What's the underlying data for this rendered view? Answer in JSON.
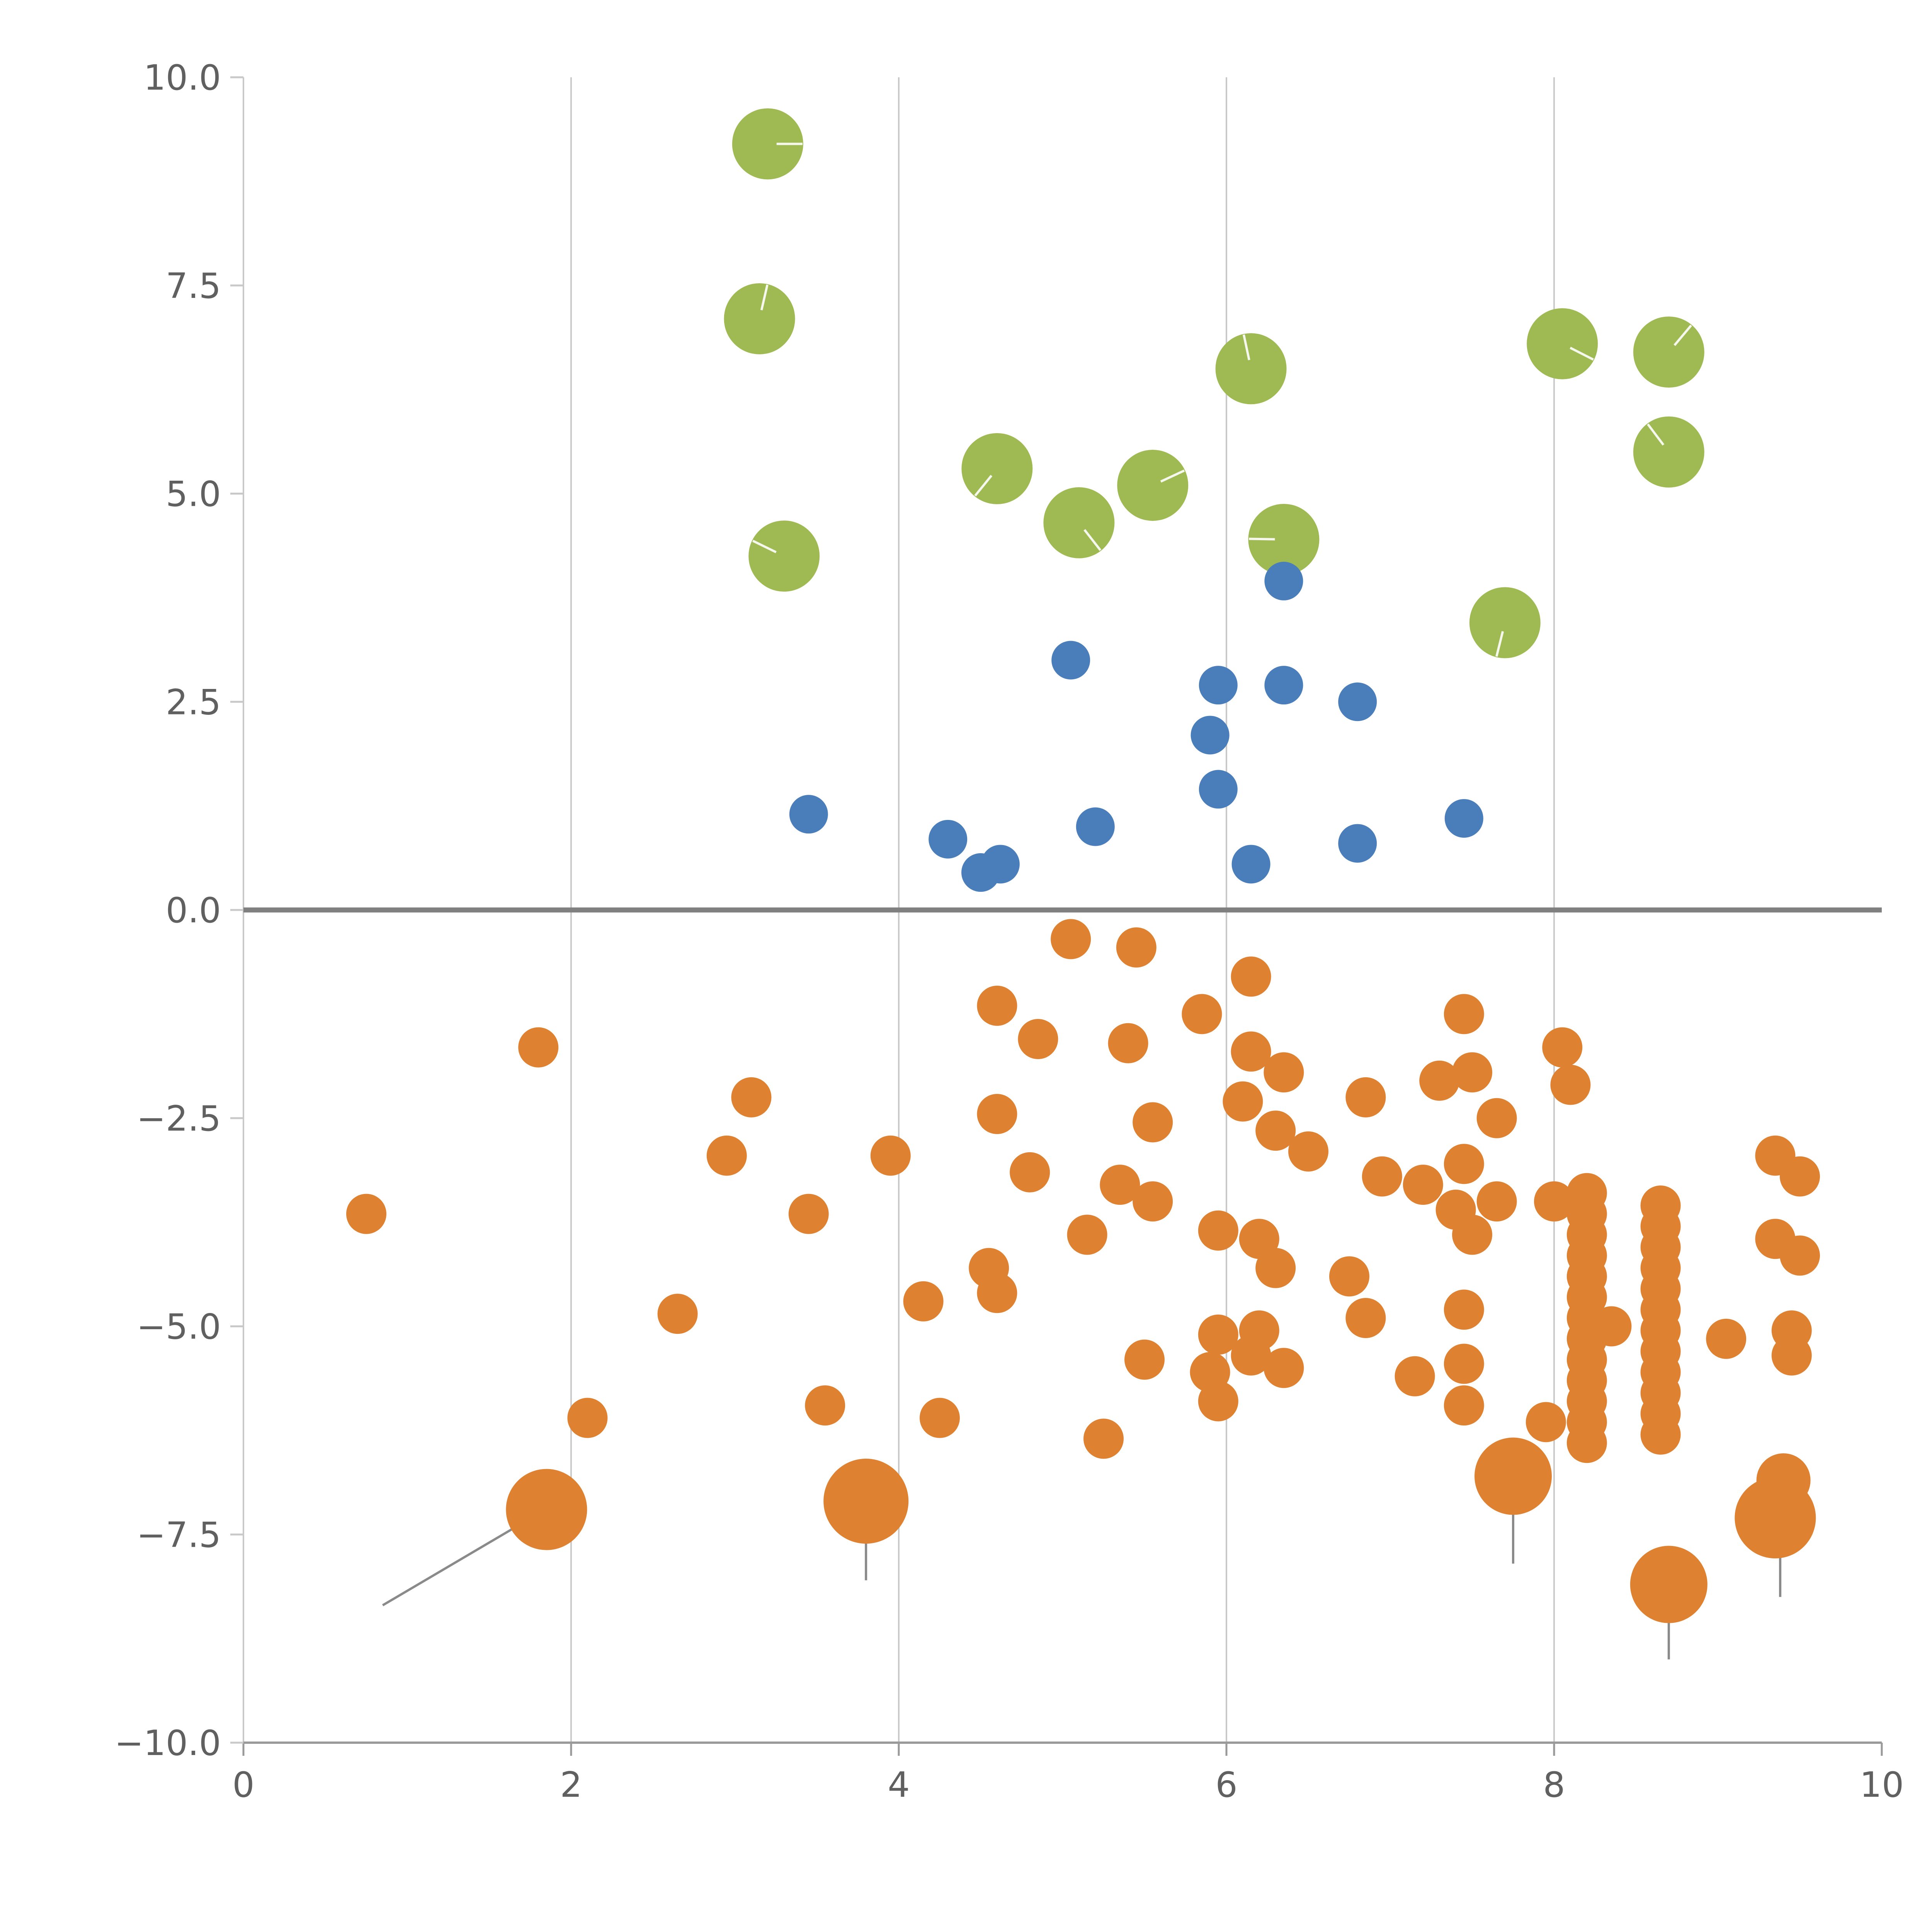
{
  "page": {
    "background": "#ffffff"
  },
  "chart_data": {
    "type": "scatter",
    "title": "",
    "xlabel": "",
    "ylabel": "",
    "xlim": [
      0,
      10
    ],
    "ylim": [
      -10,
      10
    ],
    "legend": "none",
    "grid": {
      "x_values": [
        2,
        4,
        6,
        8
      ],
      "color": "#c9c9c9"
    },
    "zero_line": {
      "y": 0,
      "color": "#808080"
    },
    "axis": {
      "tick_color": "#606060",
      "left_spine_color": "#c9c9c9",
      "bottom_spine_color": "#9a9a9a"
    },
    "x_ticks": {
      "values": [
        0,
        2,
        4,
        6,
        8,
        10
      ],
      "labels": [
        "0",
        "2",
        "4",
        "6",
        "8",
        "10"
      ]
    },
    "y_ticks": {
      "values": [
        10,
        7.5,
        5,
        2.5,
        0,
        -2.5,
        -5,
        -7.5,
        -10
      ],
      "labels": [
        "10.0",
        "7.5",
        "5.0",
        "2.5",
        "0.0",
        "−2.5",
        "−5.0",
        "−7.5",
        "−10.0"
      ]
    },
    "series": [
      {
        "name": "green-cluster",
        "color": "#9fba53",
        "marker_radius_px": 92,
        "points": [
          [
            3.2,
            9.2
          ],
          [
            3.15,
            7.1
          ],
          [
            3.3,
            4.25
          ],
          [
            4.6,
            5.3
          ],
          [
            5.1,
            4.65
          ],
          [
            5.55,
            5.1
          ],
          [
            6.15,
            6.5
          ],
          [
            6.35,
            4.45
          ],
          [
            7.7,
            3.45
          ],
          [
            8.05,
            6.8
          ],
          [
            8.7,
            6.7
          ],
          [
            8.7,
            5.5
          ]
        ]
      },
      {
        "name": "blue-cluster",
        "color": "#4a7ebb",
        "marker_radius_px": 50,
        "points": [
          [
            3.45,
            1.15
          ],
          [
            4.3,
            0.85
          ],
          [
            4.5,
            0.45
          ],
          [
            4.62,
            0.55
          ],
          [
            5.05,
            3.0
          ],
          [
            5.2,
            1.0
          ],
          [
            5.9,
            2.1
          ],
          [
            5.95,
            1.45
          ],
          [
            5.95,
            2.7
          ],
          [
            6.15,
            0.55
          ],
          [
            6.35,
            3.95
          ],
          [
            6.35,
            2.7
          ],
          [
            6.8,
            2.5
          ],
          [
            6.8,
            0.8
          ],
          [
            7.45,
            1.1
          ]
        ]
      },
      {
        "name": "orange-cluster",
        "color": "#de8232",
        "marker_radius_px": 52,
        "points": [
          [
            5.05,
            -0.35
          ],
          [
            5.45,
            -0.45
          ],
          [
            6.15,
            -0.8
          ],
          [
            4.6,
            -1.15
          ],
          [
            5.85,
            -1.25
          ],
          [
            7.45,
            -1.25
          ],
          [
            1.8,
            -1.65
          ],
          [
            4.85,
            -1.55
          ],
          [
            5.4,
            -1.6
          ],
          [
            6.15,
            -1.7
          ],
          [
            8.05,
            -1.65
          ],
          [
            6.35,
            -1.95
          ],
          [
            7.3,
            -2.05
          ],
          [
            7.5,
            -1.95
          ],
          [
            8.1,
            -2.1
          ],
          [
            3.1,
            -2.25
          ],
          [
            6.1,
            -2.3
          ],
          [
            6.85,
            -2.25
          ],
          [
            4.6,
            -2.45
          ],
          [
            5.55,
            -2.55
          ],
          [
            6.3,
            -2.65
          ],
          [
            7.65,
            -2.5
          ],
          [
            2.95,
            -2.95
          ],
          [
            3.95,
            -2.95
          ],
          [
            6.5,
            -2.9
          ],
          [
            7.45,
            -3.05
          ],
          [
            9.35,
            -2.95
          ],
          [
            9.5,
            -3.2
          ],
          [
            4.8,
            -3.15
          ],
          [
            5.35,
            -3.3
          ],
          [
            6.95,
            -3.2
          ],
          [
            7.2,
            -3.3
          ],
          [
            5.55,
            -3.5
          ],
          [
            0.75,
            -3.65
          ],
          [
            3.45,
            -3.65
          ],
          [
            7.4,
            -3.6
          ],
          [
            7.65,
            -3.5
          ],
          [
            8.0,
            -3.5
          ],
          [
            5.15,
            -3.9
          ],
          [
            5.95,
            -3.85
          ],
          [
            6.2,
            -3.95
          ],
          [
            7.5,
            -3.9
          ],
          [
            9.35,
            -3.95
          ],
          [
            9.5,
            -4.15
          ],
          [
            4.55,
            -4.3
          ],
          [
            6.3,
            -4.3
          ],
          [
            6.75,
            -4.4
          ],
          [
            4.15,
            -4.7
          ],
          [
            4.6,
            -4.6
          ],
          [
            2.65,
            -4.85
          ],
          [
            6.85,
            -4.9
          ],
          [
            7.45,
            -4.8
          ],
          [
            8.35,
            -5.0
          ],
          [
            5.95,
            -5.1
          ],
          [
            6.2,
            -5.05
          ],
          [
            9.05,
            -5.15
          ],
          [
            9.45,
            -5.05
          ],
          [
            9.45,
            -5.35
          ],
          [
            6.15,
            -5.35
          ],
          [
            5.5,
            -5.4
          ],
          [
            5.9,
            -5.55
          ],
          [
            6.35,
            -5.5
          ],
          [
            7.15,
            -5.6
          ],
          [
            7.45,
            -5.45
          ],
          [
            5.95,
            -5.9
          ],
          [
            7.45,
            -5.95
          ],
          [
            3.55,
            -5.95
          ],
          [
            2.1,
            -6.1
          ],
          [
            4.25,
            -6.1
          ],
          [
            5.25,
            -6.35
          ],
          [
            7.95,
            -6.15
          ],
          [
            8.2,
            -3.4
          ],
          [
            8.2,
            -3.65
          ],
          [
            8.2,
            -3.9
          ],
          [
            8.2,
            -4.15
          ],
          [
            8.2,
            -4.4
          ],
          [
            8.2,
            -4.65
          ],
          [
            8.2,
            -4.9
          ],
          [
            8.2,
            -5.15
          ],
          [
            8.2,
            -5.4
          ],
          [
            8.2,
            -5.65
          ],
          [
            8.2,
            -5.9
          ],
          [
            8.2,
            -6.15
          ],
          [
            8.2,
            -6.4
          ],
          [
            8.65,
            -3.55
          ],
          [
            8.65,
            -3.8
          ],
          [
            8.65,
            -4.05
          ],
          [
            8.65,
            -4.3
          ],
          [
            8.65,
            -4.55
          ],
          [
            8.65,
            -4.8
          ],
          [
            8.65,
            -5.05
          ],
          [
            8.65,
            -5.3
          ],
          [
            8.65,
            -5.55
          ],
          [
            8.65,
            -5.8
          ],
          [
            8.65,
            -6.05
          ],
          [
            8.65,
            -6.3
          ],
          [
            9.4,
            -6.85,
            70
          ],
          [
            1.85,
            -7.2,
            105
          ],
          [
            3.8,
            -7.1,
            110
          ],
          [
            7.75,
            -6.8,
            100
          ],
          [
            8.7,
            -8.1,
            100
          ],
          [
            9.35,
            -7.3,
            105
          ]
        ]
      }
    ],
    "stems": {
      "color": "#8a8a8a",
      "lines": [
        {
          "x1": 0.85,
          "y1": -8.35,
          "x2": 1.8,
          "y2": -7.25
        },
        {
          "x1": 3.8,
          "y1": -8.05,
          "x2": 3.8,
          "y2": -7.2
        },
        {
          "x1": 7.75,
          "y1": -7.85,
          "x2": 7.75,
          "y2": -6.9
        },
        {
          "x1": 8.7,
          "y1": -9.0,
          "x2": 8.7,
          "y2": -8.2
        },
        {
          "x1": 9.38,
          "y1": -8.25,
          "x2": 9.38,
          "y2": -7.4
        }
      ]
    }
  }
}
